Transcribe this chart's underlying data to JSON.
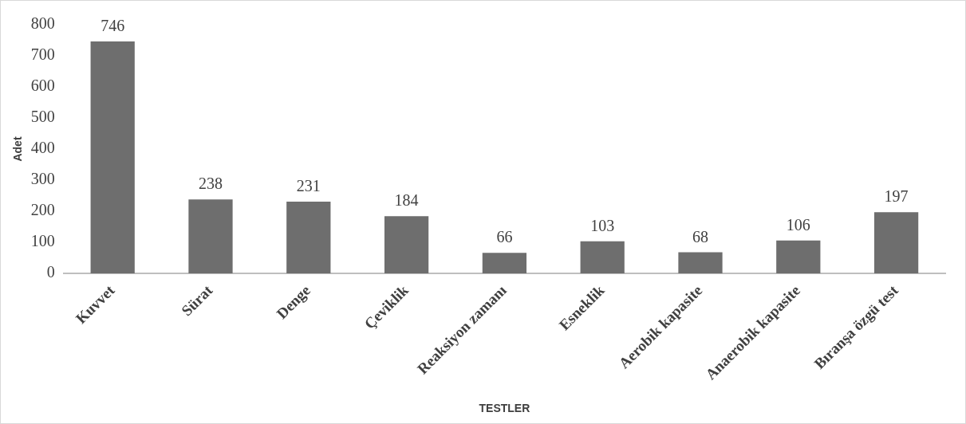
{
  "chart_data": {
    "type": "bar",
    "xlabel": "TESTLER",
    "ylabel": "Adet",
    "categories": [
      "Kuvvet",
      "Sürat",
      "Denge",
      "Çeviklik",
      "Reaksiyon zamanı",
      "Esneklik",
      "Aerobik kapasite",
      "Anaerobik kapasite",
      "Bıranşa özgü test"
    ],
    "values": [
      746,
      238,
      231,
      184,
      66,
      103,
      68,
      106,
      197
    ],
    "color": "#6e6e6e",
    "ylim": [
      0,
      800
    ],
    "yticks": [
      0,
      100,
      200,
      300,
      400,
      500,
      600,
      700,
      800
    ],
    "grid": false,
    "legend": false,
    "data_labels": true
  }
}
